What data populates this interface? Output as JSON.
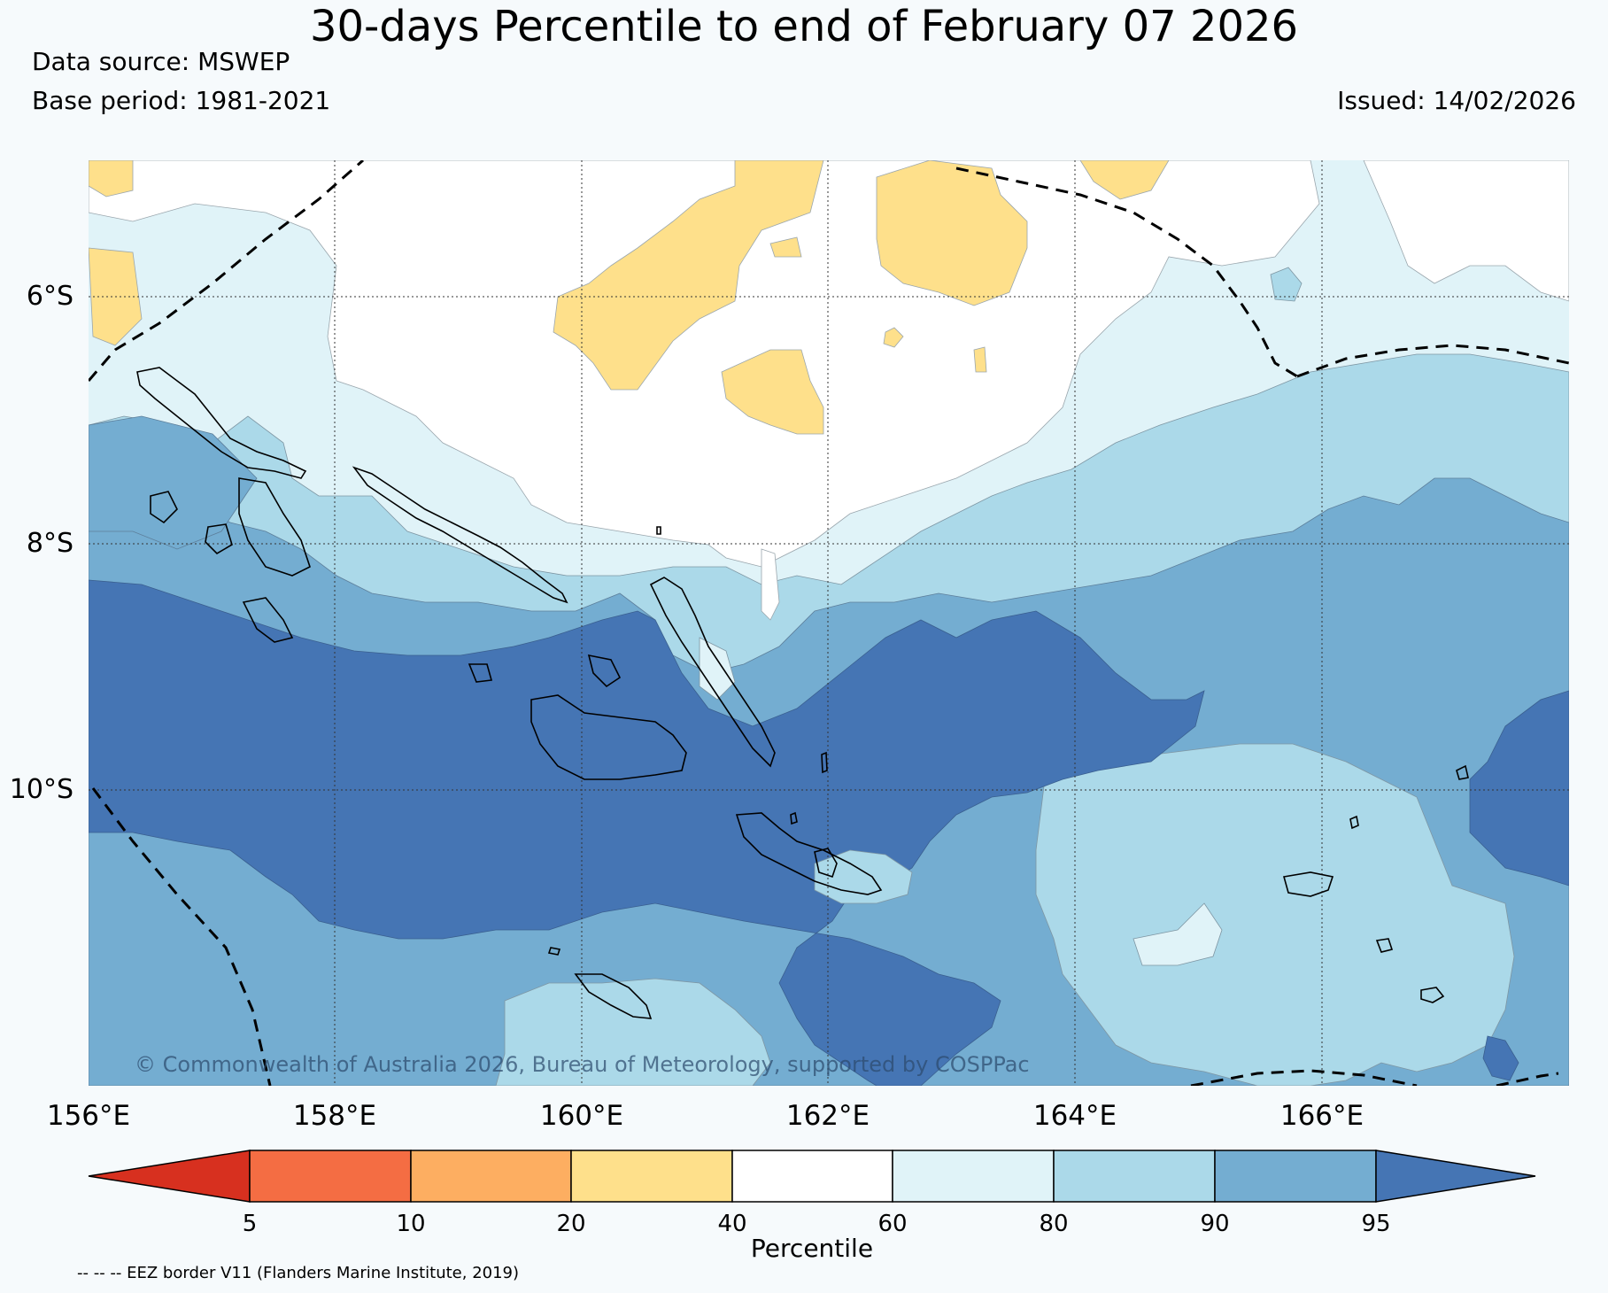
{
  "title": "30-days Percentile to end of February 07 2026",
  "data_source": "Data source: MSWEP",
  "base_period": "Base period: 1981-2021",
  "issued": "Issued: 14/02/2026",
  "copyright": "© Commonwealth of Australia 2026, Bureau of Meteorology, supported by COSPPac",
  "map": {
    "lat_labels": [
      "6°S",
      "8°S",
      "10°S"
    ],
    "lon_labels": [
      "156°E",
      "158°E",
      "160°E",
      "162°E",
      "164°E",
      "166°E"
    ]
  },
  "colorbar": {
    "title": "Percentile",
    "ticks": [
      "5",
      "10",
      "20",
      "40",
      "60",
      "80",
      "90",
      "95"
    ],
    "colors": [
      "#d7301f",
      "#f46d43",
      "#fdae61",
      "#fee08b",
      "#ffffff",
      "#e0f3f8",
      "#abd9e9",
      "#74add1",
      "#4575b4"
    ]
  },
  "footer": "-- -- -- EEZ border V11 (Flanders Marine Institute, 2019)"
}
